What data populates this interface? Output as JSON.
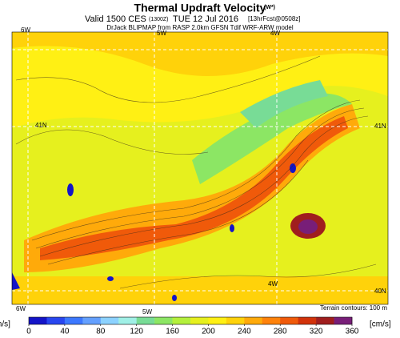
{
  "header": {
    "title": "Thermal Updraft Velocity",
    "title_sup": "(W*)",
    "valid": "Valid 1500 CES",
    "utc": "(1300Z)",
    "date": "TUE 12 Jul 2016",
    "forecast": "[13hrFcst@0508z]",
    "credit": "DrJack BLIPMAP from RASP 2.0km GFSN Tdif WRF-ARW model"
  },
  "map": {
    "labels": [
      "6W",
      "5W",
      "4W",
      "41N",
      "41N",
      "4W",
      "40N",
      "6W",
      "5W"
    ],
    "terrain_note": "Terrain contours: 100 m"
  },
  "colorbar": {
    "left_unit": "m/s]",
    "right_unit": "[cm/s]",
    "ticks": [
      0,
      40,
      80,
      120,
      160,
      200,
      240,
      280,
      320,
      360
    ],
    "colors": [
      "#1414c8",
      "#2846f0",
      "#3c78ff",
      "#64a0ff",
      "#8cd2ff",
      "#a0f0e6",
      "#78dc96",
      "#8ce664",
      "#b4f03c",
      "#e6f01e",
      "#fff014",
      "#ffd20a",
      "#ffaa0a",
      "#ff820a",
      "#f05a0a",
      "#d2320a",
      "#a01e1e",
      "#781e78"
    ]
  }
}
